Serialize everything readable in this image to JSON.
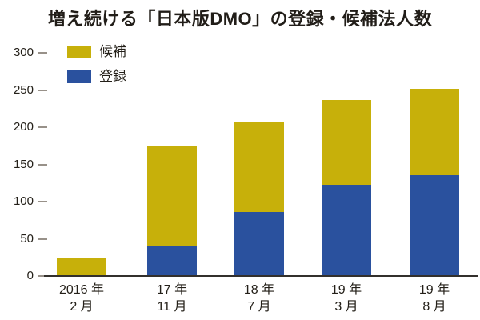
{
  "title": "増え続ける「日本版DMO」の登録・候補法人数",
  "legend": {
    "items": [
      {
        "label": "候補",
        "color": "#C7B00A"
      },
      {
        "label": "登録",
        "color": "#2A519E"
      }
    ]
  },
  "chart_data": {
    "type": "bar",
    "stacked": true,
    "title": "増え続ける「日本版DMO」の登録・候補法人数",
    "categories": [
      [
        "2016 年",
        "2 月"
      ],
      [
        "17 年",
        "11 月"
      ],
      [
        "18 年",
        "7 月"
      ],
      [
        "19 年",
        "3 月"
      ],
      [
        "19 年",
        "8 月"
      ]
    ],
    "series": [
      {
        "name": "登録",
        "color": "#2A519E",
        "values": [
          0,
          41,
          86,
          123,
          136
        ]
      },
      {
        "name": "候補",
        "color": "#C7B00A",
        "values": [
          24,
          133,
          122,
          114,
          116
        ]
      }
    ],
    "totals": [
      24,
      174,
      208,
      237,
      252
    ],
    "xlabel": "",
    "ylabel": "",
    "ylim": [
      0,
      300
    ],
    "yticks": [
      0,
      50,
      100,
      150,
      200,
      250,
      300
    ],
    "grid": false,
    "legend_position": "top-left",
    "background": "#ffffff",
    "axis_color": "#33302c",
    "tick_color": "#989189",
    "text_color": "#242019"
  }
}
